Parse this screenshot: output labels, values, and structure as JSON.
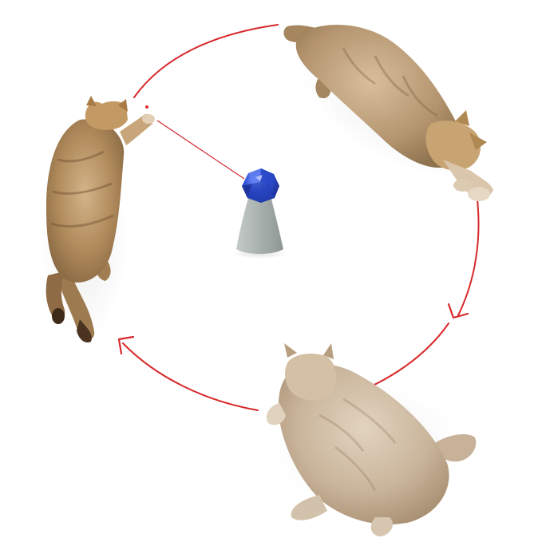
{
  "colors": {
    "background": "#ffffff",
    "path_red": "#d8282b",
    "laser_red": "#e12a2a",
    "toy_base": "#a7afab",
    "toy_gem": "#2f4fd6",
    "cat_fur_warm": "#b8966a",
    "cat_fur_light": "#cdb79e",
    "cat_fur_dark": "#7a5e3d"
  },
  "scene": {
    "subjects": [
      "cat-left",
      "cat-top-right",
      "cat-bottom"
    ],
    "toy": "laser-cone-toy",
    "path": "clockwise-circular-arrows"
  }
}
